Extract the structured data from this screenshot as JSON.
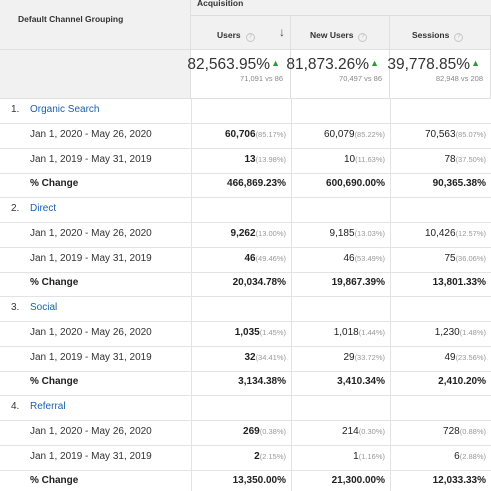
{
  "header": {
    "dimension": "Default Channel Grouping",
    "group": "Acquisition",
    "columns": [
      "Users",
      "New Users",
      "Sessions"
    ]
  },
  "summary": [
    {
      "value": "82,563.95%",
      "sub": "71,091 vs 86"
    },
    {
      "value": "81,873.26%",
      "sub": "70,497 vs 86"
    },
    {
      "value": "39,778.85%",
      "sub": "82,948 vs 208"
    }
  ],
  "colors": {
    "link": "#1a5fb4",
    "up_arrow": "#2e9b3a",
    "header_bg": "#f1f1f1"
  },
  "icons": {
    "sort": "down-arrow-icon",
    "help": "question-circle-icon",
    "trend": "triangle-up-icon"
  },
  "groups": [
    {
      "index": "1.",
      "name": "Organic Search",
      "rows": [
        {
          "label": "Jan 1, 2020 - May 26, 2020",
          "cells": [
            {
              "v": "60,706",
              "p": "(85.17%)"
            },
            {
              "v": "60,079",
              "p": "(85.22%)"
            },
            {
              "v": "70,563",
              "p": "(85.07%)"
            }
          ]
        },
        {
          "label": "Jan 1, 2019 - May 31, 2019",
          "cells": [
            {
              "v": "13",
              "p": "(13.98%)"
            },
            {
              "v": "10",
              "p": "(11.63%)"
            },
            {
              "v": "78",
              "p": "(37.50%)"
            }
          ]
        }
      ],
      "change": {
        "label": "% Change",
        "values": [
          "466,869.23%",
          "600,690.00%",
          "90,365.38%"
        ]
      }
    },
    {
      "index": "2.",
      "name": "Direct",
      "rows": [
        {
          "label": "Jan 1, 2020 - May 26, 2020",
          "cells": [
            {
              "v": "9,262",
              "p": "(13.00%)"
            },
            {
              "v": "9,185",
              "p": "(13.03%)"
            },
            {
              "v": "10,426",
              "p": "(12.57%)"
            }
          ]
        },
        {
          "label": "Jan 1, 2019 - May 31, 2019",
          "cells": [
            {
              "v": "46",
              "p": "(49.46%)"
            },
            {
              "v": "46",
              "p": "(53.49%)"
            },
            {
              "v": "75",
              "p": "(36.06%)"
            }
          ]
        }
      ],
      "change": {
        "label": "% Change",
        "values": [
          "20,034.78%",
          "19,867.39%",
          "13,801.33%"
        ]
      }
    },
    {
      "index": "3.",
      "name": "Social",
      "rows": [
        {
          "label": "Jan 1, 2020 - May 26, 2020",
          "cells": [
            {
              "v": "1,035",
              "p": "(1.45%)"
            },
            {
              "v": "1,018",
              "p": "(1.44%)"
            },
            {
              "v": "1,230",
              "p": "(1.48%)"
            }
          ]
        },
        {
          "label": "Jan 1, 2019 - May 31, 2019",
          "cells": [
            {
              "v": "32",
              "p": "(34.41%)"
            },
            {
              "v": "29",
              "p": "(33.72%)"
            },
            {
              "v": "49",
              "p": "(23.56%)"
            }
          ]
        }
      ],
      "change": {
        "label": "% Change",
        "values": [
          "3,134.38%",
          "3,410.34%",
          "2,410.20%"
        ]
      }
    },
    {
      "index": "4.",
      "name": "Referral",
      "rows": [
        {
          "label": "Jan 1, 2020 - May 26, 2020",
          "cells": [
            {
              "v": "269",
              "p": "(0.38%)"
            },
            {
              "v": "214",
              "p": "(0.30%)"
            },
            {
              "v": "728",
              "p": "(0.88%)"
            }
          ]
        },
        {
          "label": "Jan 1, 2019 - May 31, 2019",
          "cells": [
            {
              "v": "2",
              "p": "(2.15%)"
            },
            {
              "v": "1",
              "p": "(1.16%)"
            },
            {
              "v": "6",
              "p": "(2.88%)"
            }
          ]
        }
      ],
      "change": {
        "label": "% Change",
        "values": [
          "13,350.00%",
          "21,300.00%",
          "12,033.33%"
        ]
      }
    }
  ]
}
